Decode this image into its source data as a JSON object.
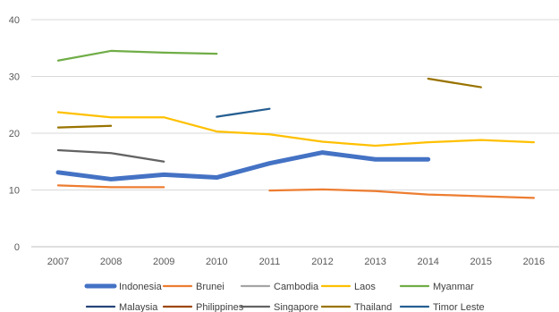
{
  "chart_data": {
    "type": "line",
    "title": "",
    "xlabel": "",
    "ylabel": "",
    "x": [
      "2007",
      "2008",
      "2009",
      "2010",
      "2011",
      "2012",
      "2013",
      "2014",
      "2015",
      "2016"
    ],
    "ylim": [
      0,
      40
    ],
    "yticks": [
      0,
      10,
      20,
      30,
      40
    ],
    "grid": true,
    "legend_position": "bottom",
    "series": [
      {
        "name": "Indonesia",
        "color": "#4472C4",
        "emphasis": true,
        "values": [
          13.1,
          11.9,
          12.7,
          12.2,
          14.7,
          16.6,
          15.4,
          15.4,
          null,
          null
        ]
      },
      {
        "name": "Brunei",
        "color": "#ED7D31",
        "values": [
          10.8,
          10.5,
          10.5,
          null,
          9.9,
          10.1,
          9.8,
          9.2,
          8.9,
          8.6
        ]
      },
      {
        "name": "Cambodia",
        "color": "#A5A5A5",
        "values": [
          null,
          null,
          null,
          null,
          null,
          null,
          null,
          null,
          null,
          null
        ]
      },
      {
        "name": "Laos",
        "color": "#FFC000",
        "values": [
          23.7,
          22.8,
          22.8,
          20.3,
          19.8,
          18.5,
          17.8,
          18.4,
          18.8,
          18.4
        ]
      },
      {
        "name": "Myanmar",
        "color": "#70AD47",
        "values": [
          32.8,
          34.5,
          34.2,
          34.0,
          null,
          null,
          null,
          null,
          null,
          null
        ]
      },
      {
        "name": "Malaysia",
        "color": "#264478",
        "values": [
          null,
          null,
          null,
          null,
          null,
          null,
          null,
          null,
          null,
          null
        ]
      },
      {
        "name": "Philippines",
        "color": "#9E480E",
        "values": [
          null,
          null,
          null,
          null,
          null,
          null,
          null,
          null,
          null,
          null
        ]
      },
      {
        "name": "Singapore",
        "color": "#636363",
        "values": [
          17.0,
          16.5,
          15.0,
          null,
          null,
          null,
          null,
          null,
          null,
          null
        ]
      },
      {
        "name": "Thailand",
        "color": "#997300",
        "values": [
          21.0,
          21.3,
          null,
          null,
          null,
          null,
          null,
          29.6,
          28.1,
          null
        ]
      },
      {
        "name": "Timor Leste",
        "color": "#255E91",
        "values": [
          null,
          null,
          null,
          22.9,
          24.3,
          null,
          null,
          null,
          null,
          null
        ]
      }
    ]
  }
}
